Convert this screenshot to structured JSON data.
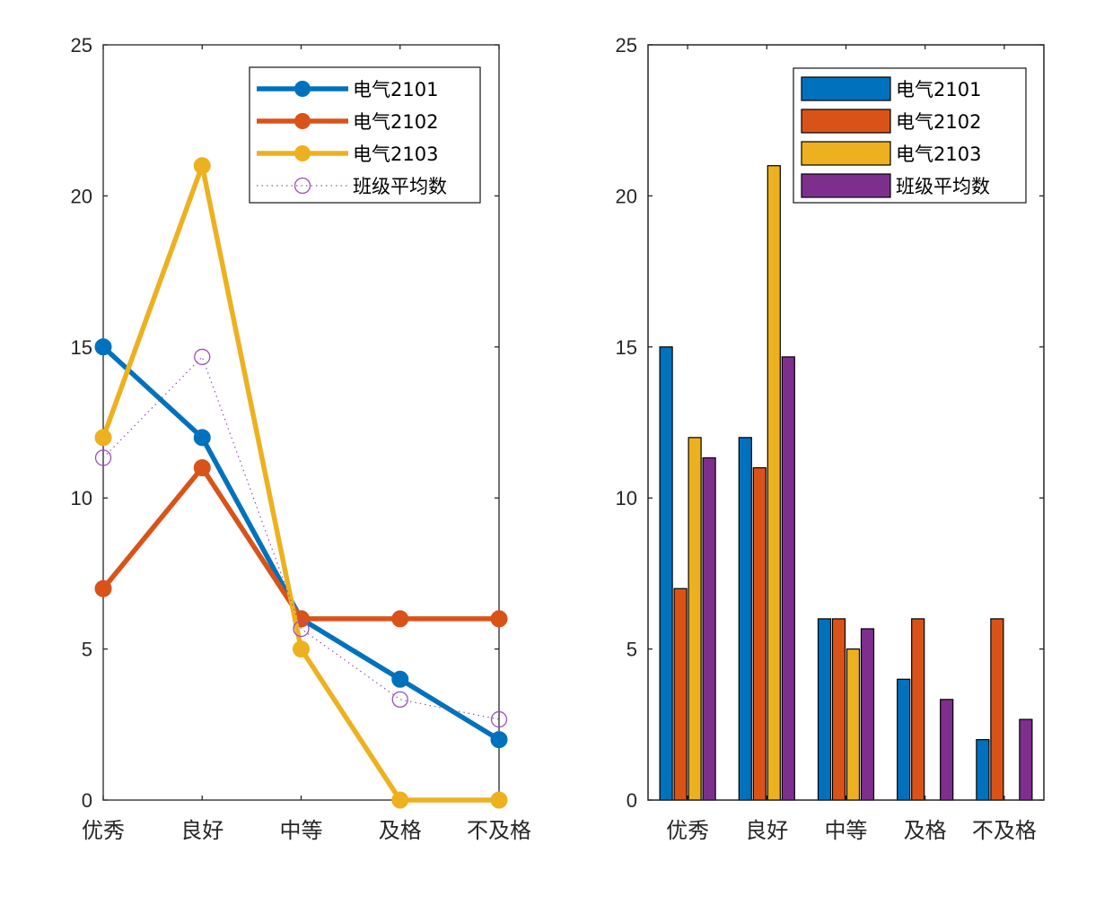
{
  "chart_data": [
    {
      "type": "line",
      "title": "",
      "xlabel": "",
      "ylabel": "",
      "categories": [
        "优秀",
        "良好",
        "中等",
        "及格",
        "不及格"
      ],
      "ylim": [
        0,
        25
      ],
      "yticks": [
        0,
        5,
        10,
        15,
        20,
        25
      ],
      "grid": false,
      "legend_position": "top-right",
      "series": [
        {
          "name": "电气2101",
          "values": [
            15,
            12,
            6,
            4,
            2
          ],
          "color": "#0072BD",
          "style": "solid-thick",
          "marker": "filled-circle"
        },
        {
          "name": "电气2102",
          "values": [
            7,
            11,
            6,
            6,
            6
          ],
          "color": "#D95319",
          "style": "solid-thick",
          "marker": "filled-circle"
        },
        {
          "name": "电气2103",
          "values": [
            12,
            21,
            5,
            0,
            0
          ],
          "color": "#EDB120",
          "style": "solid-thick",
          "marker": "filled-circle"
        },
        {
          "name": "班级平均数",
          "values": [
            11.33,
            14.67,
            5.67,
            3.33,
            2.67
          ],
          "color": "#9B4FB6",
          "style": "dotted-thin",
          "marker": "open-circle"
        }
      ]
    },
    {
      "type": "bar",
      "title": "",
      "xlabel": "",
      "ylabel": "",
      "categories": [
        "优秀",
        "良好",
        "中等",
        "及格",
        "不及格"
      ],
      "ylim": [
        0,
        25
      ],
      "yticks": [
        0,
        5,
        10,
        15,
        20,
        25
      ],
      "grid": false,
      "legend_position": "top-right",
      "series": [
        {
          "name": "电气2101",
          "values": [
            15,
            12,
            6,
            4,
            2
          ],
          "color": "#0072BD"
        },
        {
          "name": "电气2102",
          "values": [
            7,
            11,
            6,
            6,
            6
          ],
          "color": "#D95319"
        },
        {
          "name": "电气2103",
          "values": [
            12,
            21,
            5,
            0,
            0
          ],
          "color": "#EDB120"
        },
        {
          "name": "班级平均数",
          "values": [
            11.33,
            14.67,
            5.67,
            3.33,
            2.67
          ],
          "color": "#7E2F8E"
        }
      ]
    }
  ]
}
